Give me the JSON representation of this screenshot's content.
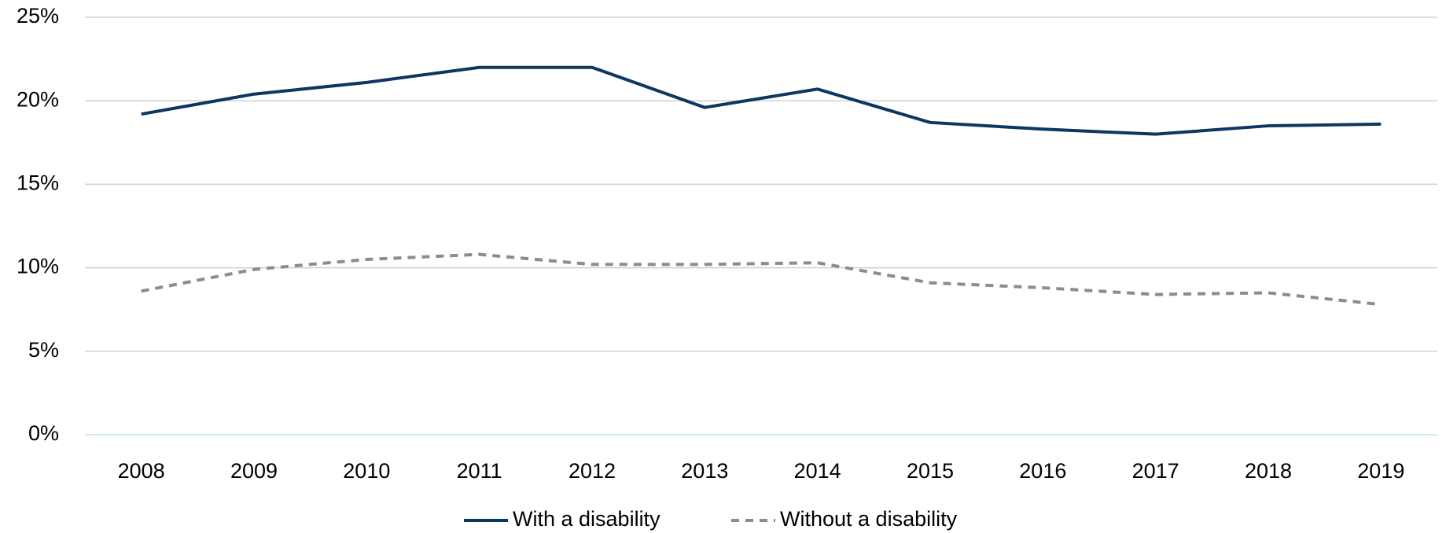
{
  "chart_data": {
    "type": "line",
    "categories": [
      "2008",
      "2009",
      "2010",
      "2011",
      "2012",
      "2013",
      "2014",
      "2015",
      "2016",
      "2017",
      "2018",
      "2019"
    ],
    "series": [
      {
        "name": "With a disability",
        "color": "#0b3760",
        "dash": "solid",
        "values": [
          19.2,
          20.4,
          21.1,
          22.0,
          22.0,
          19.6,
          20.7,
          18.7,
          18.3,
          18.0,
          18.5,
          18.6
        ]
      },
      {
        "name": "Without a disability",
        "color": "#8c8c8c",
        "dash": "dashed",
        "values": [
          8.6,
          9.9,
          10.5,
          10.8,
          10.2,
          10.2,
          10.3,
          9.1,
          8.8,
          8.4,
          8.5,
          7.8
        ]
      }
    ],
    "ylim": [
      0,
      25
    ],
    "yticks": [
      {
        "value": 0,
        "label": "0%"
      },
      {
        "value": 5,
        "label": "5%"
      },
      {
        "value": 10,
        "label": "10%"
      },
      {
        "value": 15,
        "label": "15%"
      },
      {
        "value": 20,
        "label": "20%"
      },
      {
        "value": 25,
        "label": "25%"
      }
    ],
    "grid": true,
    "legend": "bottom"
  }
}
